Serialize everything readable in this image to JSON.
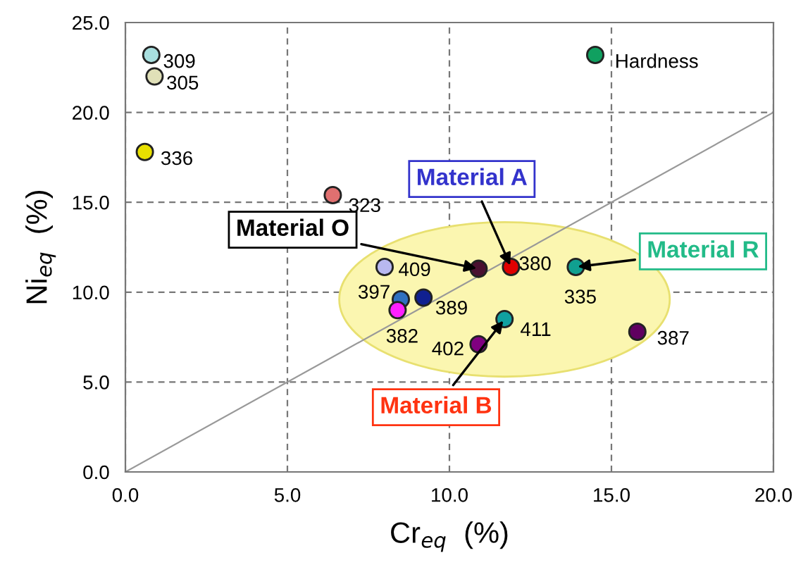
{
  "chart_data": {
    "type": "scatter",
    "xlabel": "Cr$_{eq}$  (%)",
    "ylabel": "Ni$_{eq}$  (%)",
    "xlim": [
      0,
      20
    ],
    "ylim": [
      0,
      25
    ],
    "xticks": [
      {
        "value": 0,
        "label": "0.0"
      },
      {
        "value": 5,
        "label": "5.0"
      },
      {
        "value": 10,
        "label": "10.0"
      },
      {
        "value": 15,
        "label": "15.0"
      },
      {
        "value": 20,
        "label": "20.0"
      }
    ],
    "yticks": [
      {
        "value": 0,
        "label": "0.0"
      },
      {
        "value": 5,
        "label": "5.0"
      },
      {
        "value": 10,
        "label": "10.0"
      },
      {
        "value": 15,
        "label": "15.0"
      },
      {
        "value": 20,
        "label": "20.0"
      },
      {
        "value": 25,
        "label": "25.0"
      }
    ],
    "grid": true,
    "legend": false,
    "marker": "circle",
    "series": [
      {
        "name": "309",
        "color": "#a8dede",
        "x": [
          0.8
        ],
        "values": [
          23.2
        ]
      },
      {
        "name": "305",
        "color": "#e0e0b8",
        "x": [
          0.9
        ],
        "values": [
          22.0
        ]
      },
      {
        "name": "336",
        "color": "#e8e000",
        "x": [
          0.6
        ],
        "values": [
          17.8
        ]
      },
      {
        "name": "323",
        "color": "#e07070",
        "x": [
          6.4
        ],
        "values": [
          15.4
        ]
      },
      {
        "name": "409",
        "color": "#b8b8f0",
        "x": [
          8.0
        ],
        "values": [
          11.4
        ]
      },
      {
        "name": "397",
        "color": "#3070c0",
        "x": [
          8.5
        ],
        "values": [
          9.6
        ]
      },
      {
        "name": "382",
        "color": "#ff20ff",
        "x": [
          8.4
        ],
        "values": [
          9.0
        ]
      },
      {
        "name": "389",
        "color": "#102090",
        "x": [
          9.2
        ],
        "values": [
          9.7
        ]
      },
      {
        "name": "402",
        "color": "#800080",
        "x": [
          10.9
        ],
        "values": [
          7.1
        ]
      },
      {
        "color": "#4a1030",
        "x": [
          10.9
        ],
        "values": [
          11.3
        ]
      },
      {
        "name": "380",
        "color": "#e00000",
        "x": [
          11.9
        ],
        "values": [
          11.4
        ]
      },
      {
        "name": "335",
        "color": "#10a090",
        "x": [
          13.9
        ],
        "values": [
          11.4
        ]
      },
      {
        "name": "411",
        "color": "#10a0a0",
        "x": [
          11.7
        ],
        "values": [
          8.5
        ]
      },
      {
        "name": "387",
        "color": "#600060",
        "x": [
          15.8
        ],
        "values": [
          7.8
        ]
      },
      {
        "name": "Hardness",
        "color": "#10a060",
        "x": [
          14.5
        ],
        "values": [
          23.2
        ]
      },
      {
        "type": "line",
        "color": "#999999",
        "x": [
          0,
          20
        ],
        "values": [
          0,
          20
        ],
        "marker": "none"
      }
    ],
    "annotations": [
      {
        "text": "Material O",
        "x": 10.9,
        "y": 11.3
      },
      {
        "text": "Material A",
        "x": 11.9,
        "y": 11.4
      },
      {
        "text": "Material R",
        "x": 13.9,
        "y": 11.4
      },
      {
        "text": "Material B",
        "x": 11.7,
        "y": 8.5
      }
    ]
  }
}
